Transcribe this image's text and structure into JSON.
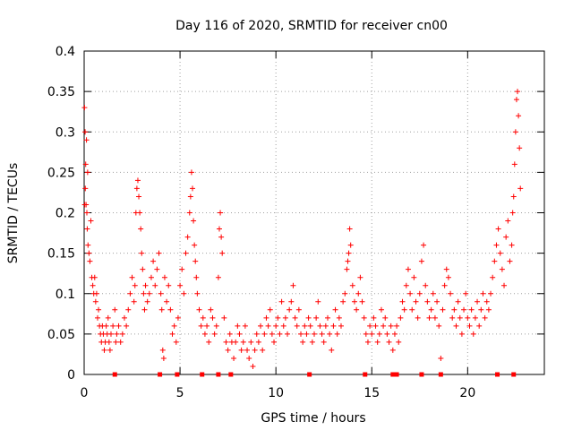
{
  "chart_data": {
    "type": "scatter",
    "title": "Day 116 of 2020, SRMTID for receiver cn00",
    "xlabel": "GPS time / hours",
    "ylabel": "SRMTID / TECUs",
    "xlim": [
      0,
      24
    ],
    "ylim": [
      0,
      0.4
    ],
    "x_ticks": [
      0,
      5,
      10,
      15,
      20
    ],
    "x_tick_labels": [
      "0",
      "5",
      "10",
      "15",
      "20"
    ],
    "y_ticks": [
      0,
      0.05,
      0.1,
      0.15,
      0.2,
      0.25,
      0.3,
      0.35,
      0.4
    ],
    "y_tick_labels": [
      "0",
      "0.05",
      "0.1",
      "0.15",
      "0.2",
      "0.25",
      "0.3",
      "0.35",
      "0.4"
    ],
    "grid": true,
    "marker": "plus",
    "color": "#ff0000",
    "series": [
      {
        "name": "SRMTID",
        "points": [
          [
            0.02,
            0.33
          ],
          [
            0.03,
            0.21
          ],
          [
            0.05,
            0.3
          ],
          [
            0.06,
            0.23
          ],
          [
            0.08,
            0.26
          ],
          [
            0.1,
            0.21
          ],
          [
            0.12,
            0.29
          ],
          [
            0.14,
            0.2
          ],
          [
            0.16,
            0.18
          ],
          [
            0.18,
            0.25
          ],
          [
            0.2,
            0.16
          ],
          [
            0.25,
            0.15
          ],
          [
            0.3,
            0.14
          ],
          [
            0.35,
            0.19
          ],
          [
            0.4,
            0.12
          ],
          [
            0.45,
            0.11
          ],
          [
            0.5,
            0.1
          ],
          [
            0.55,
            0.12
          ],
          [
            0.6,
            0.09
          ],
          [
            0.65,
            0.1
          ],
          [
            0.7,
            0.07
          ],
          [
            0.75,
            0.08
          ],
          [
            0.8,
            0.06
          ],
          [
            0.85,
            0.05
          ],
          [
            0.9,
            0.04
          ],
          [
            0.95,
            0.06
          ],
          [
            1.0,
            0.05
          ],
          [
            1.05,
            0.03
          ],
          [
            1.1,
            0.04
          ],
          [
            1.15,
            0.06
          ],
          [
            1.2,
            0.05
          ],
          [
            1.25,
            0.07
          ],
          [
            1.3,
            0.04
          ],
          [
            1.35,
            0.03
          ],
          [
            1.4,
            0.05
          ],
          [
            1.5,
            0.06
          ],
          [
            1.6,
            0.08
          ],
          [
            1.65,
            0.04
          ],
          [
            1.7,
            0.05
          ],
          [
            1.8,
            0.06
          ],
          [
            1.9,
            0.04
          ],
          [
            2.0,
            0.05
          ],
          [
            2.1,
            0.07
          ],
          [
            2.2,
            0.06
          ],
          [
            2.3,
            0.08
          ],
          [
            2.4,
            0.1
          ],
          [
            2.5,
            0.12
          ],
          [
            2.6,
            0.09
          ],
          [
            2.65,
            0.11
          ],
          [
            2.7,
            0.2
          ],
          [
            2.75,
            0.23
          ],
          [
            2.8,
            0.24
          ],
          [
            2.85,
            0.22
          ],
          [
            2.9,
            0.2
          ],
          [
            2.95,
            0.18
          ],
          [
            3.0,
            0.15
          ],
          [
            3.05,
            0.13
          ],
          [
            3.1,
            0.1
          ],
          [
            3.15,
            0.08
          ],
          [
            3.2,
            0.11
          ],
          [
            3.3,
            0.09
          ],
          [
            3.4,
            0.1
          ],
          [
            3.5,
            0.12
          ],
          [
            3.6,
            0.14
          ],
          [
            3.7,
            0.11
          ],
          [
            3.8,
            0.13
          ],
          [
            3.9,
            0.15
          ],
          [
            4.0,
            0.1
          ],
          [
            4.05,
            0.08
          ],
          [
            4.1,
            0.03
          ],
          [
            4.15,
            0.02
          ],
          [
            4.2,
            0.12
          ],
          [
            4.3,
            0.09
          ],
          [
            4.4,
            0.11
          ],
          [
            4.5,
            0.08
          ],
          [
            4.6,
            0.05
          ],
          [
            4.7,
            0.06
          ],
          [
            4.8,
            0.04
          ],
          [
            4.9,
            0.07
          ],
          [
            5.0,
            0.11
          ],
          [
            5.1,
            0.13
          ],
          [
            5.2,
            0.1
          ],
          [
            5.3,
            0.15
          ],
          [
            5.4,
            0.17
          ],
          [
            5.5,
            0.2
          ],
          [
            5.55,
            0.22
          ],
          [
            5.6,
            0.25
          ],
          [
            5.65,
            0.23
          ],
          [
            5.7,
            0.19
          ],
          [
            5.75,
            0.16
          ],
          [
            5.8,
            0.14
          ],
          [
            5.85,
            0.12
          ],
          [
            5.9,
            0.1
          ],
          [
            6.0,
            0.08
          ],
          [
            6.1,
            0.06
          ],
          [
            6.2,
            0.07
          ],
          [
            6.3,
            0.05
          ],
          [
            6.4,
            0.06
          ],
          [
            6.5,
            0.04
          ],
          [
            6.6,
            0.08
          ],
          [
            6.7,
            0.07
          ],
          [
            6.8,
            0.05
          ],
          [
            6.9,
            0.06
          ],
          [
            7.0,
            0.12
          ],
          [
            7.05,
            0.18
          ],
          [
            7.1,
            0.2
          ],
          [
            7.15,
            0.17
          ],
          [
            7.2,
            0.15
          ],
          [
            7.3,
            0.07
          ],
          [
            7.4,
            0.04
          ],
          [
            7.5,
            0.03
          ],
          [
            7.6,
            0.05
          ],
          [
            7.7,
            0.04
          ],
          [
            7.8,
            0.02
          ],
          [
            7.9,
            0.04
          ],
          [
            8.0,
            0.06
          ],
          [
            8.1,
            0.05
          ],
          [
            8.2,
            0.03
          ],
          [
            8.3,
            0.04
          ],
          [
            8.4,
            0.06
          ],
          [
            8.5,
            0.03
          ],
          [
            8.6,
            0.02
          ],
          [
            8.7,
            0.04
          ],
          [
            8.8,
            0.01
          ],
          [
            8.9,
            0.03
          ],
          [
            9.0,
            0.05
          ],
          [
            9.1,
            0.04
          ],
          [
            9.2,
            0.06
          ],
          [
            9.3,
            0.03
          ],
          [
            9.4,
            0.05
          ],
          [
            9.5,
            0.07
          ],
          [
            9.6,
            0.06
          ],
          [
            9.7,
            0.08
          ],
          [
            9.8,
            0.05
          ],
          [
            9.9,
            0.04
          ],
          [
            10.0,
            0.06
          ],
          [
            10.1,
            0.07
          ],
          [
            10.2,
            0.05
          ],
          [
            10.3,
            0.09
          ],
          [
            10.4,
            0.06
          ],
          [
            10.5,
            0.07
          ],
          [
            10.6,
            0.05
          ],
          [
            10.7,
            0.08
          ],
          [
            10.8,
            0.09
          ],
          [
            10.9,
            0.11
          ],
          [
            11.0,
            0.07
          ],
          [
            11.1,
            0.06
          ],
          [
            11.2,
            0.08
          ],
          [
            11.3,
            0.05
          ],
          [
            11.4,
            0.04
          ],
          [
            11.5,
            0.06
          ],
          [
            11.6,
            0.05
          ],
          [
            11.7,
            0.07
          ],
          [
            11.8,
            0.06
          ],
          [
            11.9,
            0.04
          ],
          [
            12.0,
            0.05
          ],
          [
            12.1,
            0.07
          ],
          [
            12.2,
            0.09
          ],
          [
            12.3,
            0.06
          ],
          [
            12.4,
            0.05
          ],
          [
            12.5,
            0.04
          ],
          [
            12.6,
            0.06
          ],
          [
            12.7,
            0.07
          ],
          [
            12.8,
            0.05
          ],
          [
            12.9,
            0.03
          ],
          [
            13.0,
            0.06
          ],
          [
            13.1,
            0.08
          ],
          [
            13.2,
            0.05
          ],
          [
            13.3,
            0.07
          ],
          [
            13.4,
            0.06
          ],
          [
            13.5,
            0.09
          ],
          [
            13.6,
            0.1
          ],
          [
            13.7,
            0.13
          ],
          [
            13.75,
            0.14
          ],
          [
            13.8,
            0.15
          ],
          [
            13.85,
            0.18
          ],
          [
            13.9,
            0.16
          ],
          [
            14.0,
            0.11
          ],
          [
            14.1,
            0.09
          ],
          [
            14.2,
            0.08
          ],
          [
            14.3,
            0.1
          ],
          [
            14.4,
            0.12
          ],
          [
            14.5,
            0.09
          ],
          [
            14.6,
            0.07
          ],
          [
            14.7,
            0.05
          ],
          [
            14.8,
            0.04
          ],
          [
            14.9,
            0.06
          ],
          [
            15.0,
            0.05
          ],
          [
            15.1,
            0.07
          ],
          [
            15.2,
            0.06
          ],
          [
            15.3,
            0.04
          ],
          [
            15.4,
            0.05
          ],
          [
            15.5,
            0.08
          ],
          [
            15.6,
            0.06
          ],
          [
            15.7,
            0.07
          ],
          [
            15.8,
            0.05
          ],
          [
            15.9,
            0.04
          ],
          [
            16.0,
            0.06
          ],
          [
            16.1,
            0.03
          ],
          [
            16.2,
            0.05
          ],
          [
            16.3,
            0.06
          ],
          [
            16.4,
            0.04
          ],
          [
            16.5,
            0.07
          ],
          [
            16.6,
            0.09
          ],
          [
            16.7,
            0.08
          ],
          [
            16.8,
            0.11
          ],
          [
            16.9,
            0.13
          ],
          [
            17.0,
            0.1
          ],
          [
            17.1,
            0.08
          ],
          [
            17.2,
            0.12
          ],
          [
            17.3,
            0.09
          ],
          [
            17.4,
            0.07
          ],
          [
            17.5,
            0.1
          ],
          [
            17.6,
            0.14
          ],
          [
            17.7,
            0.16
          ],
          [
            17.8,
            0.11
          ],
          [
            17.9,
            0.09
          ],
          [
            18.0,
            0.07
          ],
          [
            18.1,
            0.08
          ],
          [
            18.2,
            0.1
          ],
          [
            18.3,
            0.07
          ],
          [
            18.4,
            0.09
          ],
          [
            18.5,
            0.06
          ],
          [
            18.6,
            0.02
          ],
          [
            18.7,
            0.08
          ],
          [
            18.8,
            0.11
          ],
          [
            18.9,
            0.13
          ],
          [
            19.0,
            0.12
          ],
          [
            19.1,
            0.1
          ],
          [
            19.2,
            0.07
          ],
          [
            19.3,
            0.08
          ],
          [
            19.4,
            0.06
          ],
          [
            19.5,
            0.09
          ],
          [
            19.6,
            0.07
          ],
          [
            19.7,
            0.05
          ],
          [
            19.8,
            0.08
          ],
          [
            19.9,
            0.1
          ],
          [
            20.0,
            0.07
          ],
          [
            20.1,
            0.06
          ],
          [
            20.2,
            0.08
          ],
          [
            20.3,
            0.05
          ],
          [
            20.4,
            0.07
          ],
          [
            20.5,
            0.09
          ],
          [
            20.6,
            0.06
          ],
          [
            20.7,
            0.08
          ],
          [
            20.8,
            0.1
          ],
          [
            20.9,
            0.07
          ],
          [
            21.0,
            0.09
          ],
          [
            21.1,
            0.08
          ],
          [
            21.2,
            0.1
          ],
          [
            21.3,
            0.12
          ],
          [
            21.4,
            0.14
          ],
          [
            21.5,
            0.16
          ],
          [
            21.6,
            0.18
          ],
          [
            21.7,
            0.15
          ],
          [
            21.8,
            0.13
          ],
          [
            21.9,
            0.11
          ],
          [
            22.0,
            0.17
          ],
          [
            22.1,
            0.19
          ],
          [
            22.2,
            0.14
          ],
          [
            22.3,
            0.16
          ],
          [
            22.35,
            0.2
          ],
          [
            22.4,
            0.22
          ],
          [
            22.45,
            0.26
          ],
          [
            22.5,
            0.3
          ],
          [
            22.55,
            0.34
          ],
          [
            22.6,
            0.35
          ],
          [
            22.65,
            0.32
          ],
          [
            22.7,
            0.28
          ],
          [
            22.75,
            0.23
          ]
        ]
      }
    ],
    "baseline_markers_x": [
      1.6,
      3.95,
      4.85,
      6.15,
      7.0,
      7.65,
      11.75,
      14.65,
      16.1,
      16.2,
      16.3,
      17.6,
      18.6,
      21.55,
      22.4
    ]
  }
}
